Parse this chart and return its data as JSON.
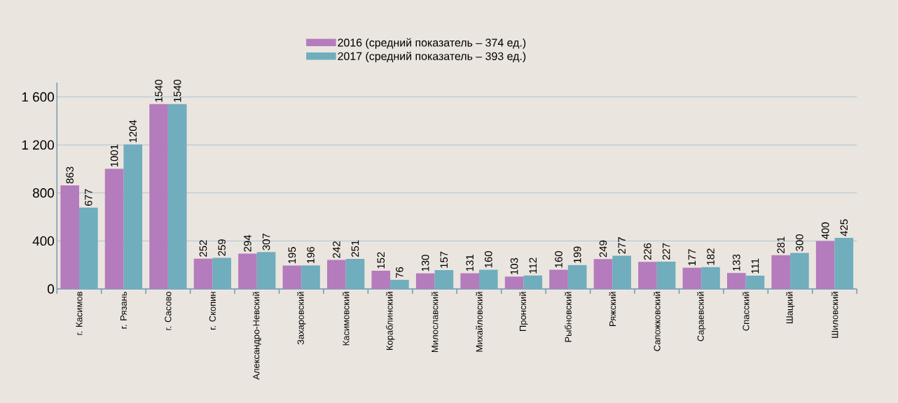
{
  "chart_data": {
    "type": "bar",
    "categories": [
      "г. Касимов",
      "г. Рязань",
      "г. Сасово",
      "г. Скопин",
      "Александро-Невский",
      "Захаровский",
      "Касимовский",
      "Кораблинский",
      "Милославский",
      "Михайловский",
      "Пронский",
      "Рыбновский",
      "Ряжский",
      "Сапожковский",
      "Сараевский",
      "Спасский",
      "Шацкий",
      "Шиловский"
    ],
    "series": [
      {
        "name": "2016 (средний показатель – 374 ед.)",
        "color": "#b47cbc",
        "values": [
          863,
          1001,
          1540,
          252,
          294,
          195,
          242,
          152,
          130,
          131,
          103,
          160,
          249,
          226,
          177,
          133,
          281,
          400
        ]
      },
      {
        "name": "2017 (средний показатель – 393 ед.)",
        "color": "#70adbd",
        "values": [
          677,
          1204,
          1540,
          259,
          307,
          196,
          251,
          76,
          157,
          160,
          112,
          199,
          277,
          227,
          182,
          111,
          300,
          425
        ]
      }
    ],
    "ylim": [
      0,
      1720
    ],
    "yticks": [
      0,
      400,
      800,
      {
        "value": 1200,
        "label": "1 200"
      },
      {
        "value": 1600,
        "label": "1 600"
      }
    ],
    "grid": "y",
    "legend": "top",
    "data_labels": true
  }
}
